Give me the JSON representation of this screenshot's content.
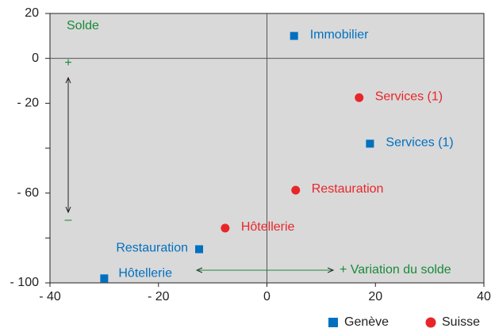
{
  "chart_data": {
    "type": "scatter",
    "xlim": [
      -40,
      40
    ],
    "ylim": [
      -100,
      20
    ],
    "xticks": [
      {
        "value": -40,
        "label": "- 40"
      },
      {
        "value": -20,
        "label": "- 20"
      },
      0,
      20,
      40
    ],
    "yticks": [
      20,
      0,
      {
        "value": -20,
        "label": "- 20"
      },
      {
        "value": -60,
        "label": "- 60"
      },
      {
        "value": -100,
        "label": "- 100"
      }
    ],
    "yminor_ticks": [
      -40,
      -80
    ],
    "annotations": [
      "Solde",
      "+",
      "–",
      "+ Variation du solde"
    ],
    "series": [
      {
        "name": "Genève",
        "color": "#0070c0",
        "marker": "square",
        "labels": [
          "Immobilier",
          "Services (1)",
          "Restauration",
          "Hôtellerie"
        ],
        "x": [
          5,
          19,
          -12.5,
          -30
        ],
        "values": [
          10,
          -38,
          -85,
          -98
        ]
      },
      {
        "name": "Suisse",
        "color": "#e8262a",
        "marker": "circle",
        "labels": [
          "Services (1)",
          "Restauration",
          "Hôtellerie"
        ],
        "x": [
          17,
          5.3,
          -7.7
        ],
        "values": [
          -17.5,
          -58.7,
          -75.6
        ]
      }
    ]
  }
}
